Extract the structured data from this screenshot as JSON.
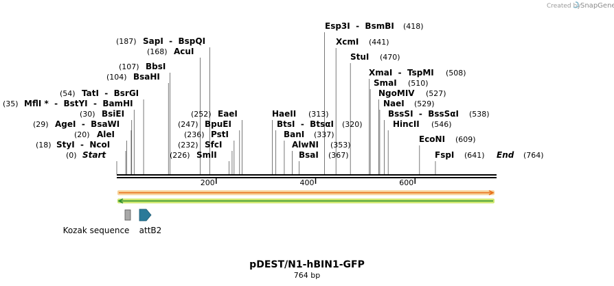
{
  "credit": {
    "prefix": "Created by",
    "brand": "SnapGene"
  },
  "map": {
    "name": "pDEST/N1-hBIN1-GFP",
    "length_label": "764 bp",
    "length": 764
  },
  "ruler": {
    "ticks": [
      {
        "pos": 200,
        "label": "200"
      },
      {
        "pos": 400,
        "label": "400"
      },
      {
        "pos": 600,
        "label": "600"
      }
    ]
  },
  "sites": [
    {
      "id": "start",
      "label": "Start",
      "num": "(0)",
      "pos": 0,
      "italic": true
    },
    {
      "id": "styi-ncoi",
      "label": "StyI  -  NcoI",
      "num": "(18)",
      "pos": 18
    },
    {
      "id": "alei",
      "label": "AleI",
      "num": "(20)",
      "pos": 20
    },
    {
      "id": "agei-bsawi",
      "label": "AgeI  -  BsaWI",
      "num": "(29)",
      "pos": 29
    },
    {
      "id": "bsiei",
      "label": "BsiEI",
      "num": "(30)",
      "pos": 30
    },
    {
      "id": "mfli-group",
      "label": "MflI *  -  BstYI  -  BamHI",
      "num": "(35)",
      "pos": 35
    },
    {
      "id": "tati-bsrgi",
      "label": "TatI  -  BsrGI",
      "num": "(54)",
      "pos": 54
    },
    {
      "id": "bsahi",
      "label": "BsaHI",
      "num": "(104)",
      "pos": 104
    },
    {
      "id": "bbsi",
      "label": "BbsI",
      "num": "(107)",
      "pos": 107
    },
    {
      "id": "acui",
      "label": "AcuI",
      "num": "(168)",
      "pos": 168
    },
    {
      "id": "sapi-bspqi",
      "label": "SapI  -  BspQI",
      "num": "(187)",
      "pos": 187
    },
    {
      "id": "smli",
      "label": "SmlI",
      "num": "(226)",
      "pos": 226
    },
    {
      "id": "sfci",
      "label": "SfcI",
      "num": "(232)",
      "pos": 232
    },
    {
      "id": "psti",
      "label": "PstI",
      "num": "(236)",
      "pos": 236
    },
    {
      "id": "bpuei",
      "label": "BpuEI",
      "num": "(247)",
      "pos": 247
    },
    {
      "id": "eaei",
      "label": "EaeI",
      "num": "(252)",
      "pos": 252
    },
    {
      "id": "haeii",
      "label": "HaeII",
      "num": "(313)",
      "pos": 313
    },
    {
      "id": "btsi-btsai",
      "label": "BtsI  -  BtsαI",
      "num": "(320)",
      "pos": 320
    },
    {
      "id": "bani",
      "label": "BanI",
      "num": "(337)",
      "pos": 337
    },
    {
      "id": "alwni",
      "label": "AlwNI",
      "num": "(353)",
      "pos": 353
    },
    {
      "id": "bsai",
      "label": "BsaI",
      "num": "(367)",
      "pos": 367
    },
    {
      "id": "esp3i-bsmbi",
      "label": "Esp3I  -  BsmBI",
      "num": "(418)",
      "pos": 418
    },
    {
      "id": "xcmi",
      "label": "XcmI",
      "num": "(441)",
      "pos": 441
    },
    {
      "id": "stui",
      "label": "StuI",
      "num": "(470)",
      "pos": 470
    },
    {
      "id": "xmai-tspmi",
      "label": "XmaI  -  TspMI",
      "num": "(508)",
      "pos": 508
    },
    {
      "id": "smai",
      "label": "SmaI",
      "num": "(510)",
      "pos": 510
    },
    {
      "id": "ngomiv",
      "label": "NgoMIV",
      "num": "(527)",
      "pos": 527
    },
    {
      "id": "naei",
      "label": "NaeI",
      "num": "(529)",
      "pos": 529
    },
    {
      "id": "bsssi-bsssai",
      "label": "BssSI  -  BssSαI",
      "num": "(538)",
      "pos": 538
    },
    {
      "id": "hincii",
      "label": "HincII",
      "num": "(546)",
      "pos": 546
    },
    {
      "id": "econi",
      "label": "EcoNI",
      "num": "(609)",
      "pos": 609
    },
    {
      "id": "fspi",
      "label": "FspI",
      "num": "(641)",
      "pos": 641
    },
    {
      "id": "end",
      "label": "End",
      "num": "(764)",
      "pos": 764,
      "italic": true
    }
  ],
  "tracks": [
    {
      "id": "forward",
      "direction": "forward",
      "color": "#e8701a",
      "halo": "#f6d39a",
      "start": 0,
      "end": 764
    },
    {
      "id": "reverse",
      "direction": "reverse",
      "color": "#2f8f2f",
      "halo": "#cfe870",
      "start": 0,
      "end": 764
    }
  ],
  "features": [
    {
      "id": "kozak",
      "label": "Kozak sequence",
      "pos": 18,
      "color": "#a8a8a8",
      "shape": "box"
    },
    {
      "id": "attb2",
      "label": "attB2",
      "pos": 40,
      "color": "#2a7a99",
      "shape": "arrow"
    }
  ]
}
